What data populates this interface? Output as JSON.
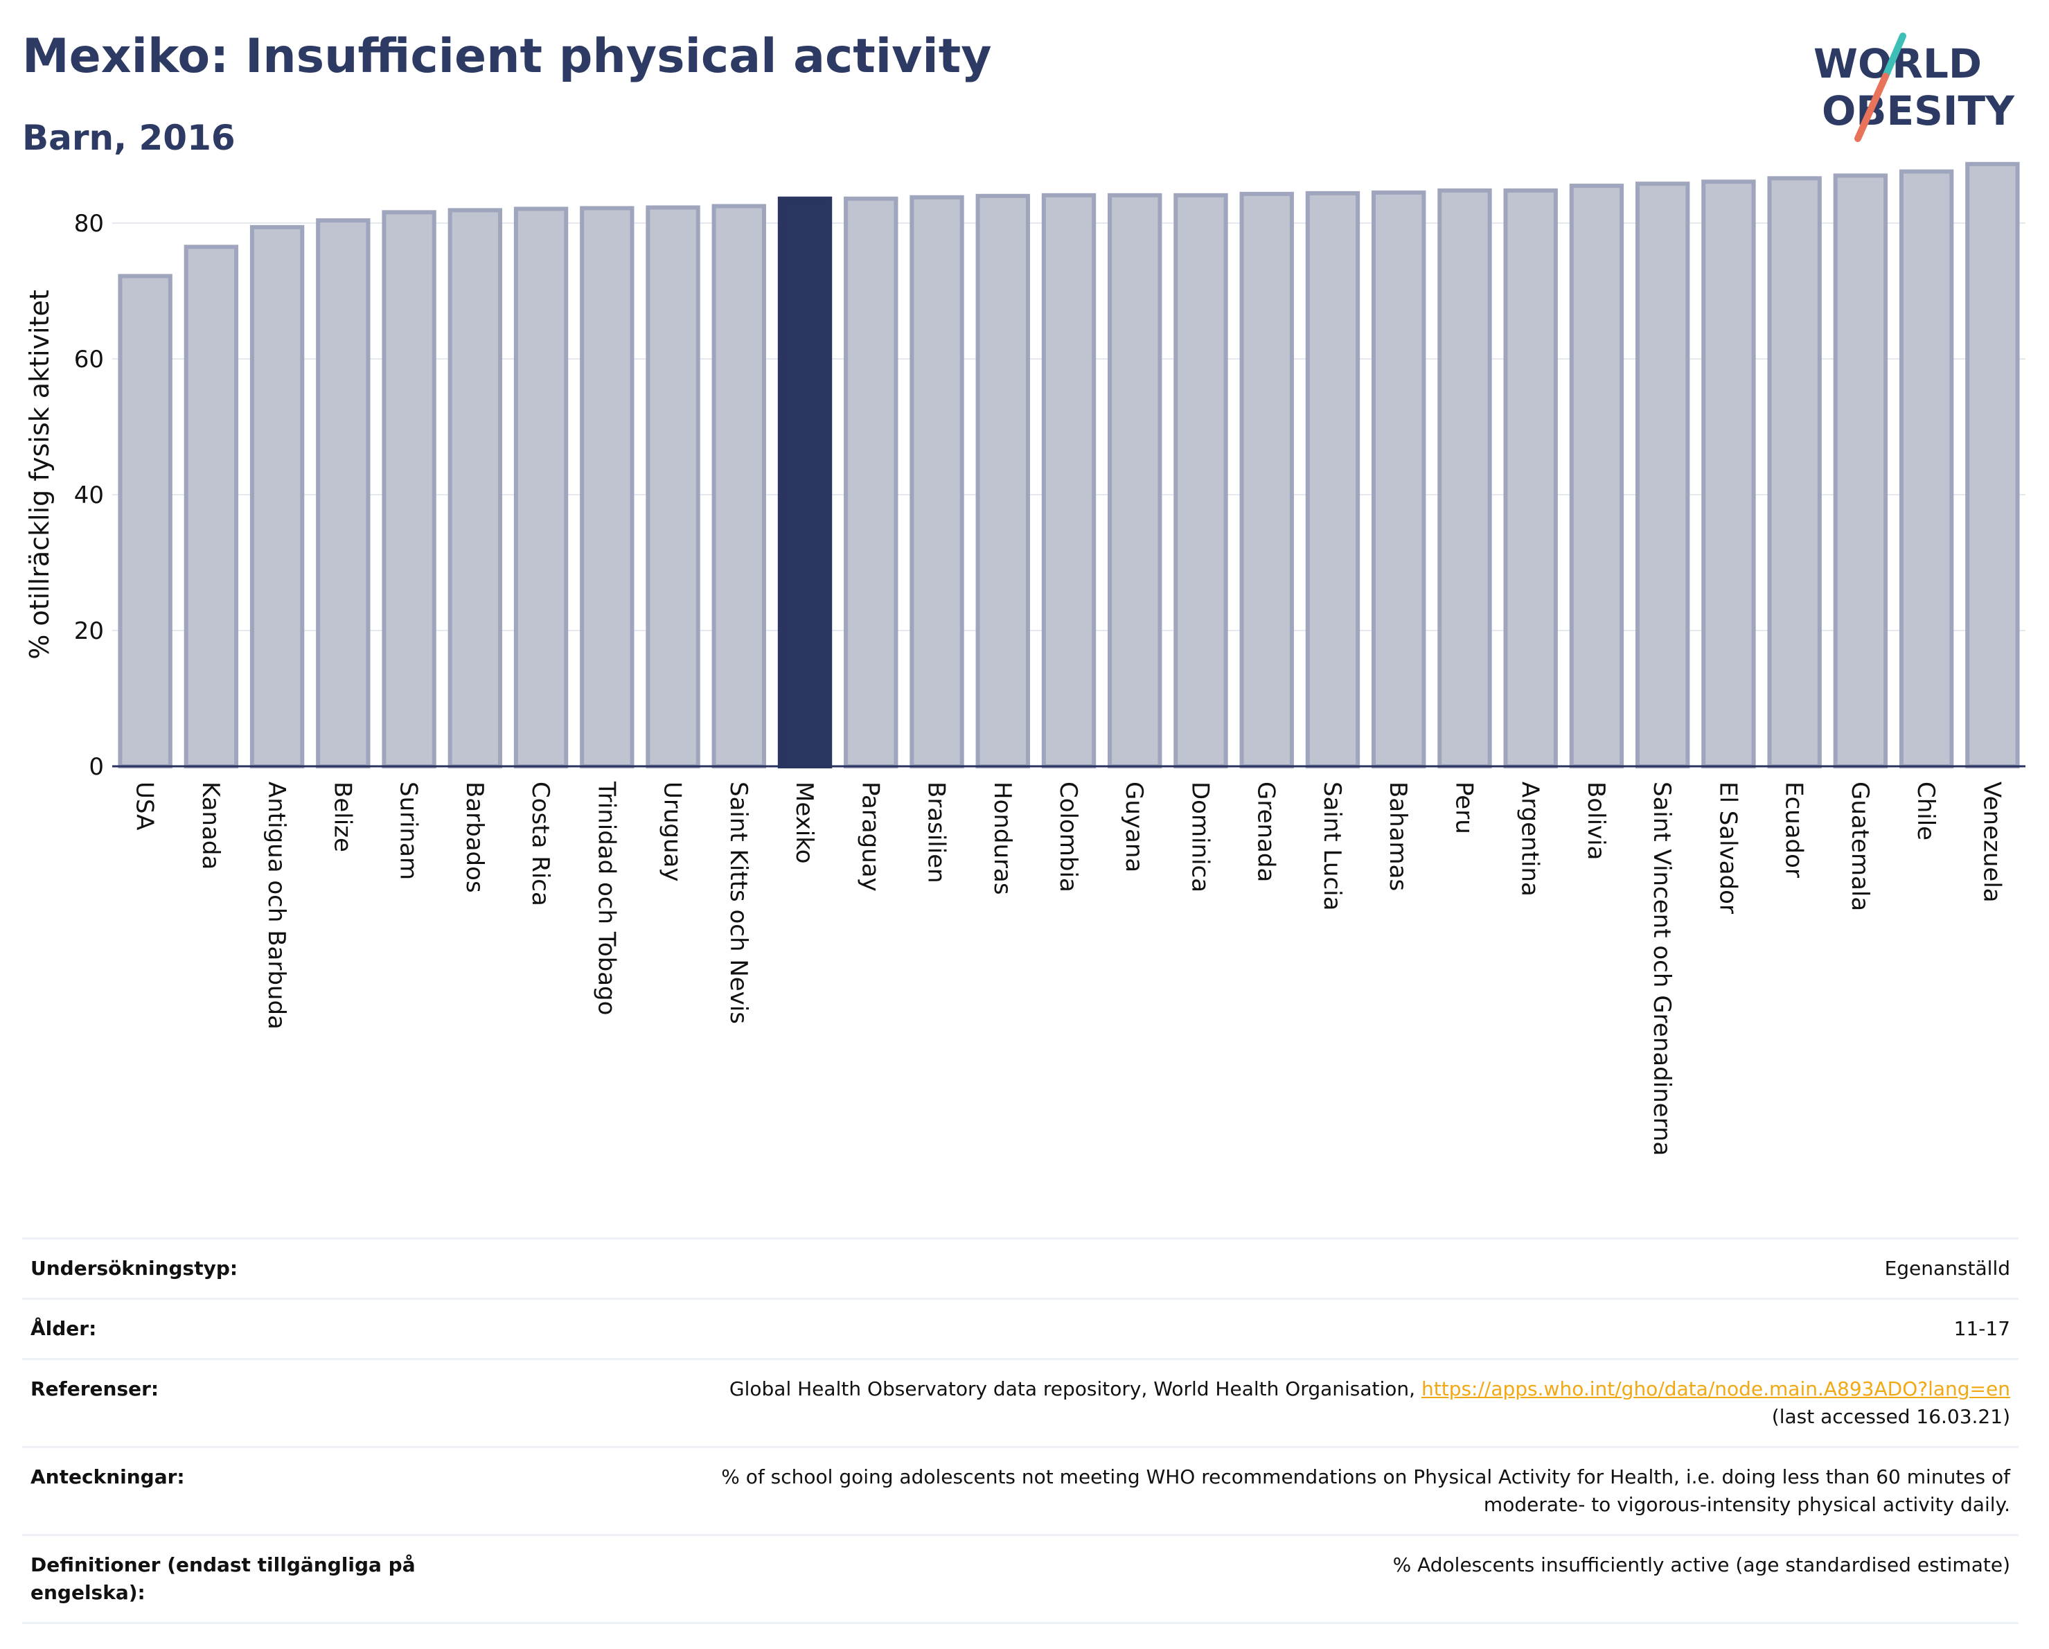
{
  "header": {
    "title": "Mexiko: Insufficient physical activity",
    "subtitle": "Barn, 2016",
    "logo_line1": "WORLD",
    "logo_line2": "OBESITY"
  },
  "chart_data": {
    "type": "bar",
    "title": "Mexiko: Insufficient physical activity",
    "subtitle": "Barn, 2016",
    "xlabel": "",
    "ylabel": "% otillräcklig fysisk aktivitet",
    "ylim": [
      0,
      90
    ],
    "yticks": [
      0,
      20,
      40,
      60,
      80
    ],
    "grid": true,
    "highlight": "Mexiko",
    "colors": {
      "bar": "#c0c3d0",
      "bar_border": "#9fa5bc",
      "highlight": "#2a3560",
      "grid": "#e6e8f0",
      "axis": "#283360"
    },
    "categories": [
      "USA",
      "Kanada",
      "Antigua och Barbuda",
      "Belize",
      "Surinam",
      "Barbados",
      "Costa Rica",
      "Trinidad och Tobago",
      "Uruguay",
      "Saint Kitts och Nevis",
      "Mexiko",
      "Paraguay",
      "Brasilien",
      "Honduras",
      "Colombia",
      "Guyana",
      "Dominica",
      "Grenada",
      "Saint Lucia",
      "Bahamas",
      "Peru",
      "Argentina",
      "Bolivia",
      "Saint Vincent och Grenadinerna",
      "El Salvador",
      "Ecuador",
      "Guatemala",
      "Chile",
      "Venezuela"
    ],
    "values": [
      72.2,
      76.5,
      79.4,
      80.4,
      81.6,
      81.9,
      82.1,
      82.2,
      82.3,
      82.5,
      83.6,
      83.6,
      83.8,
      84.0,
      84.1,
      84.1,
      84.1,
      84.3,
      84.4,
      84.5,
      84.8,
      84.8,
      85.5,
      85.8,
      86.1,
      86.6,
      87.0,
      87.6,
      88.7
    ]
  },
  "meta": {
    "survey_type_label": "Undersökningstyp:",
    "survey_type_value": "Egenanställd",
    "age_label": "Ålder:",
    "age_value": "11-17",
    "references_label": "Referenser:",
    "references_text": "Global Health Observatory data repository, World Health Organisation,",
    "references_link": "https://apps.who.int/gho/data/node.main.A893ADO?lang=en",
    "references_accessed": "(last accessed 16.03.21)",
    "notes_label": "Anteckningar:",
    "notes_line1": "% of school going adolescents not meeting WHO recommendations on Physical Activity for Health, i.e. doing less than 60 minutes of",
    "notes_line2": "moderate- to vigorous-intensity physical activity daily.",
    "definitions_label_line1": "Definitioner (endast tillgängliga på",
    "definitions_label_line2": "engelska):",
    "definitions_value": "% Adolescents insufficiently active (age standardised estimate)"
  }
}
